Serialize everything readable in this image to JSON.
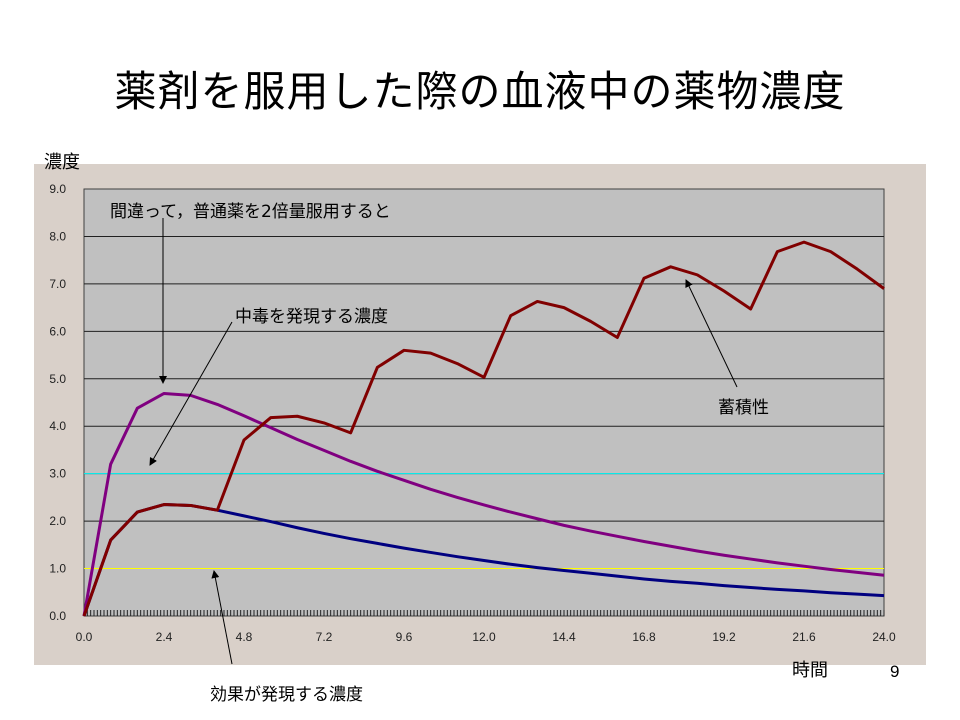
{
  "slide": {
    "title": "薬剤を服用した際の血液中の薬物濃度",
    "page_number": "9"
  },
  "annotations": {
    "double_dose": "間違って，普通薬を2倍量服用すると",
    "toxic_level": "中毒を発現する濃度",
    "accumulation": "蓄積性",
    "effective_level": "効果が発現する濃度"
  },
  "chart_data": {
    "type": "line",
    "xlabel": "時間",
    "ylabel": "濃度",
    "xlim": [
      0,
      24
    ],
    "ylim": [
      0,
      9
    ],
    "xticks": [
      "0.0",
      "2.4",
      "4.8",
      "7.2",
      "9.6",
      "12.0",
      "14.4",
      "16.8",
      "19.2",
      "21.6",
      "24.0"
    ],
    "yticks": [
      "0.0",
      "1.0",
      "2.0",
      "3.0",
      "4.0",
      "5.0",
      "6.0",
      "7.0",
      "8.0",
      "9.0"
    ],
    "grid": "horizontal",
    "plot_background": "#c0c0c0",
    "x": [
      0,
      0.8,
      1.6,
      2.4,
      3.2,
      4.0,
      4.8,
      5.6,
      6.4,
      7.2,
      8.0,
      8.8,
      9.6,
      10.4,
      11.2,
      12.0,
      12.8,
      13.6,
      14.4,
      15.2,
      16.0,
      16.8,
      17.6,
      18.4,
      19.2,
      20.0,
      20.8,
      21.6,
      22.4,
      23.2,
      24.0
    ],
    "series": [
      {
        "color": "#000080",
        "values": [
          0,
          1.6,
          2.19,
          2.35,
          2.33,
          2.23,
          2.11,
          1.99,
          1.86,
          1.74,
          1.63,
          1.53,
          1.43,
          1.34,
          1.25,
          1.17,
          1.09,
          1.02,
          0.96,
          0.9,
          0.84,
          0.78,
          0.73,
          0.69,
          0.64,
          0.6,
          0.56,
          0.53,
          0.49,
          0.46,
          0.43
        ]
      },
      {
        "color": "#800080",
        "values": [
          0,
          3.2,
          4.38,
          4.69,
          4.65,
          4.46,
          4.22,
          3.97,
          3.72,
          3.49,
          3.26,
          3.05,
          2.86,
          2.67,
          2.5,
          2.34,
          2.19,
          2.05,
          1.91,
          1.79,
          1.68,
          1.57,
          1.47,
          1.37,
          1.28,
          1.2,
          1.12,
          1.05,
          0.98,
          0.92,
          0.86
        ]
      },
      {
        "color": "#800000",
        "values": [
          0,
          1.6,
          2.19,
          2.35,
          2.33,
          2.23,
          3.71,
          4.18,
          4.21,
          4.07,
          3.86,
          5.24,
          5.6,
          5.54,
          5.32,
          5.03,
          6.33,
          6.63,
          6.5,
          6.21,
          5.87,
          7.12,
          7.36,
          7.19,
          6.85,
          6.47,
          7.68,
          7.88,
          7.68,
          7.31,
          6.9
        ]
      }
    ],
    "reference_lines": [
      {
        "y": 3.0,
        "color": "#00ffff"
      },
      {
        "y": 1.0,
        "color": "#ffff00"
      }
    ]
  }
}
